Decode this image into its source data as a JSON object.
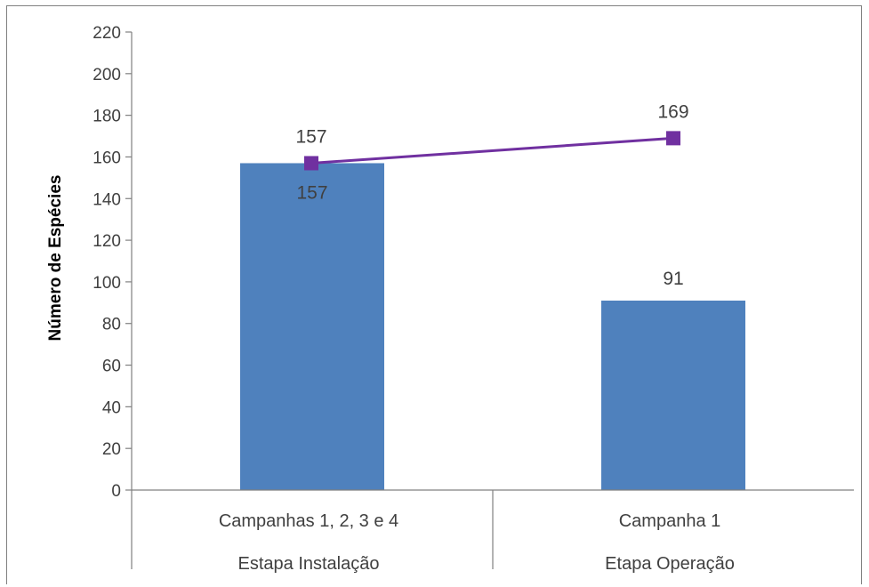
{
  "chart_data": {
    "type": "bar",
    "title": "",
    "ylabel": "Número de Espécies",
    "xlabel": "",
    "ylim": [
      0,
      220
    ],
    "yticks": [
      0,
      20,
      40,
      60,
      80,
      100,
      120,
      140,
      160,
      180,
      200,
      220
    ],
    "categories": [
      {
        "line1": "Campanhas 1, 2, 3 e 4",
        "line2": "Estapa Instalação"
      },
      {
        "line1": "Campanha 1",
        "line2": "Etapa Operação"
      }
    ],
    "series": [
      {
        "type": "bar",
        "values": [
          157,
          91
        ],
        "data_labels": [
          "157",
          "91"
        ],
        "color": "#4F81BD"
      },
      {
        "type": "line",
        "values": [
          157,
          169
        ],
        "data_labels": [
          "157",
          "169"
        ],
        "color": "#7030A0",
        "marker": "square"
      }
    ],
    "grid": false,
    "legend": "none"
  }
}
